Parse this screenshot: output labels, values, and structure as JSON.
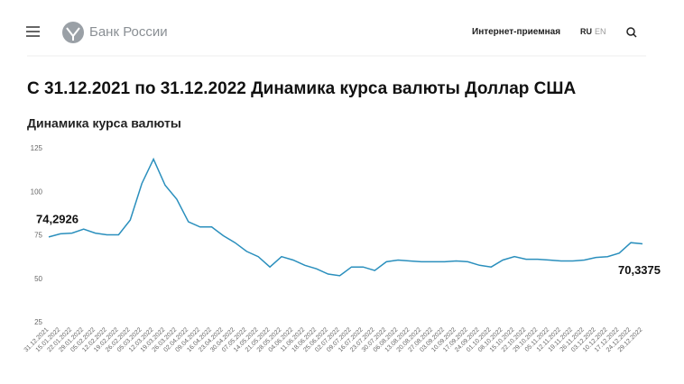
{
  "header": {
    "brand": "Банк России",
    "reception": "Интернет-приемная",
    "lang_ru": "RU",
    "lang_en": "EN"
  },
  "heading": "С 31.12.2021 по 31.12.2022 Динамика курса валюты Доллар США",
  "chart_data": {
    "type": "line",
    "title": "Динамика курса валюты",
    "categories": [
      "31.12.2021",
      "15.01.2022",
      "22.01.2022",
      "29.01.2022",
      "05.02.2022",
      "12.02.2022",
      "19.02.2022",
      "26.02.2022",
      "05.03.2022",
      "12.03.2022",
      "19.03.2022",
      "26.03.2022",
      "02.04.2022",
      "09.04.2022",
      "16.04.2022",
      "23.04.2022",
      "30.04.2022",
      "07.05.2022",
      "14.05.2022",
      "21.05.2022",
      "28.05.2022",
      "04.06.2022",
      "11.06.2022",
      "18.06.2022",
      "25.06.2022",
      "02.07.2022",
      "09.07.2022",
      "16.07.2022",
      "23.07.2022",
      "30.07.2022",
      "06.08.2022",
      "13.08.2022",
      "20.08.2022",
      "27.08.2022",
      "03.09.2022",
      "10.09.2022",
      "17.09.2022",
      "24.09.2022",
      "01.10.2022",
      "08.10.2022",
      "15.10.2022",
      "22.10.2022",
      "29.10.2022",
      "05.11.2022",
      "12.11.2022",
      "19.11.2022",
      "26.11.2022",
      "03.12.2022",
      "10.12.2022",
      "17.12.2022",
      "24.12.2022",
      "29.12.2022"
    ],
    "values": [
      74.2926,
      76.1,
      76.5,
      78.8,
      76.5,
      75.5,
      75.5,
      84,
      105,
      119,
      104,
      96,
      83,
      80,
      80,
      75,
      71,
      66,
      63,
      57,
      63,
      61,
      58,
      56,
      53,
      52,
      57,
      57,
      55,
      60,
      61,
      60.5,
      60,
      60,
      60,
      60.5,
      60,
      58,
      57,
      61,
      63,
      61.5,
      61.5,
      61,
      60.5,
      60.5,
      61,
      62.5,
      63,
      65,
      71,
      70.3375
    ],
    "value_labels": [
      "74,2926",
      null,
      null,
      null,
      null,
      null,
      null,
      null,
      null,
      null,
      null,
      null,
      null,
      null,
      null,
      null,
      null,
      null,
      null,
      null,
      null,
      null,
      null,
      null,
      null,
      null,
      null,
      null,
      null,
      null,
      null,
      null,
      null,
      null,
      null,
      null,
      null,
      null,
      null,
      null,
      null,
      null,
      null,
      null,
      null,
      null,
      null,
      null,
      null,
      null,
      null,
      "70,3375"
    ],
    "color": "#2a8fbd",
    "ylim": [
      25,
      125
    ],
    "yticks": [
      25,
      50,
      75,
      100,
      125
    ],
    "grid": false
  }
}
